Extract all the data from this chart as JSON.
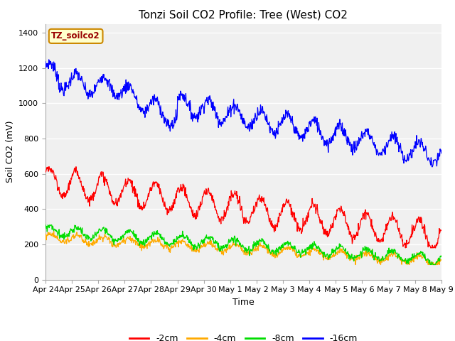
{
  "title": "Tonzi Soil CO2 Profile: Tree (West) CO2",
  "xlabel": "Time",
  "ylabel": "Soil CO2 (mV)",
  "ylim": [
    0,
    1450
  ],
  "yticks": [
    0,
    200,
    400,
    600,
    800,
    1000,
    1200,
    1400
  ],
  "fig_bg_color": "#ffffff",
  "plot_bg_color": "#f0f0f0",
  "legend_label": "TZ_soilco2",
  "legend_box_facecolor": "#ffffcc",
  "legend_box_edgecolor": "#cc8800",
  "series_colors": {
    "2cm": "#ff0000",
    "4cm": "#ffaa00",
    "8cm": "#00dd00",
    "16cm": "#0000ff"
  },
  "series_labels": {
    "2cm": "-2cm",
    "4cm": "-4cm",
    "8cm": "-8cm",
    "16cm": "-16cm"
  },
  "x_tick_labels": [
    "Apr 24",
    "Apr 25",
    "Apr 26",
    "Apr 27",
    "Apr 28",
    "Apr 29",
    "Apr 30",
    "May 1",
    "May 2",
    "May 3",
    "May 4",
    "May 5",
    "May 6",
    "May 7",
    "May 8",
    "May 9"
  ],
  "n_points": 960,
  "title_fontsize": 11,
  "axis_fontsize": 9,
  "tick_fontsize": 8,
  "line_width": 0.9
}
